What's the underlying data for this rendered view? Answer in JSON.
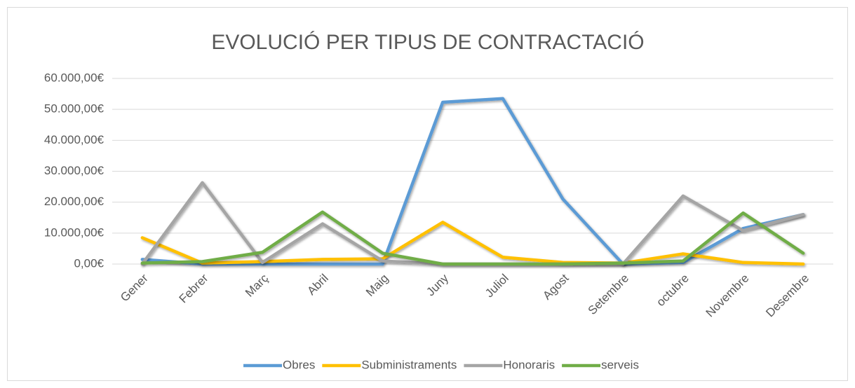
{
  "chart_data": {
    "type": "line",
    "title": "EVOLUCIÓ PER TIPUS DE CONTRACTACIÓ",
    "categories": [
      "Gener",
      "Febrer",
      "Març",
      "Abril",
      "Maig",
      "Juny",
      "Juliol",
      "Agost",
      "Setembre",
      "octubre",
      "Novembre",
      "Desembre"
    ],
    "series": [
      {
        "name": "Obres",
        "color": "#5b9bd5",
        "values": [
          1500,
          0,
          0,
          0,
          0,
          52300,
          53500,
          21000,
          0,
          500,
          11500,
          16000
        ]
      },
      {
        "name": "Subministraments",
        "color": "#ffc000",
        "values": [
          8500,
          300,
          800,
          1500,
          1700,
          13500,
          2200,
          500,
          300,
          3300,
          500,
          0
        ]
      },
      {
        "name": "Honoraris",
        "color": "#a5a5a5",
        "values": [
          0,
          26300,
          500,
          13000,
          1000,
          0,
          0,
          0,
          0,
          22000,
          10800,
          16000
        ]
      },
      {
        "name": "serveis",
        "color": "#70ad47",
        "values": [
          300,
          800,
          3800,
          16800,
          3500,
          0,
          0,
          0,
          300,
          1000,
          16500,
          3500
        ]
      }
    ],
    "ylim": [
      0,
      60000
    ],
    "yticks": [
      {
        "value": 0,
        "label": "0,00€"
      },
      {
        "value": 10000,
        "label": "10.000,00€"
      },
      {
        "value": 20000,
        "label": "20.000,00€"
      },
      {
        "value": 30000,
        "label": "30.000,00€"
      },
      {
        "value": 40000,
        "label": "40.000,00€"
      },
      {
        "value": 50000,
        "label": "50.000,00€"
      },
      {
        "value": 60000,
        "label": "60.000,00€"
      }
    ],
    "grid": true,
    "legend": "bottom"
  }
}
